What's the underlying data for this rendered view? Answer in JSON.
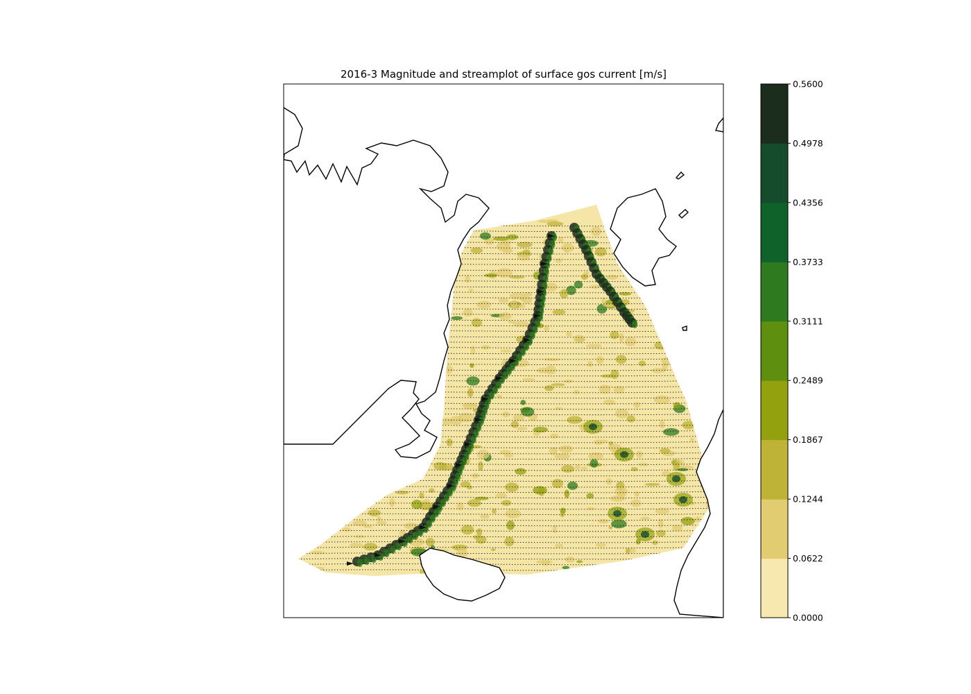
{
  "chart_data": {
    "type": "heatmap",
    "title": "2016-3 Magnitude and streamplot of surface gos current [m/s]",
    "colorbar": {
      "levels": [
        0.0,
        0.0622,
        0.1244,
        0.1867,
        0.2489,
        0.3111,
        0.3733,
        0.4356,
        0.4978,
        0.56
      ],
      "tick_labels": [
        "0.0000",
        "0.0622",
        "0.1244",
        "0.1867",
        "0.2489",
        "0.3111",
        "0.3733",
        "0.4356",
        "0.4978",
        "0.5600"
      ],
      "colors": [
        "#f6e8ae",
        "#e1cc72",
        "#beb337",
        "#93a10e",
        "#5f8f0f",
        "#2e7b1f",
        "#0e622a",
        "#144c2c",
        "#1b2d1c"
      ]
    },
    "overlay": "streamplot"
  }
}
